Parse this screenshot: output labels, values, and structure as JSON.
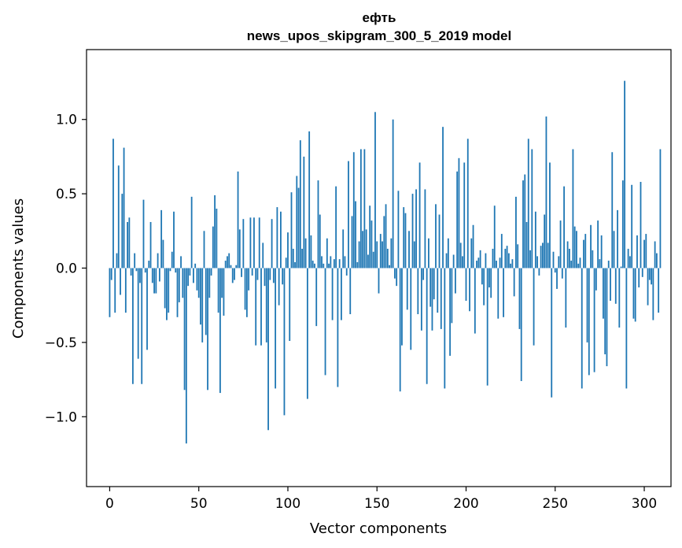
{
  "chart_data": {
    "type": "bar",
    "title_line1": "ефть",
    "title_line2": "news_upos_skipgram_300_5_2019 model",
    "xlabel": "Vector components",
    "ylabel": "Components values",
    "xlim": [
      -13,
      315
    ],
    "ylim": [
      -1.47,
      1.47
    ],
    "xticks": [
      0,
      50,
      100,
      150,
      200,
      250,
      300
    ],
    "yticks": [
      -1.0,
      -0.5,
      0.0,
      0.5,
      1.0
    ],
    "xtick_labels": [
      "0",
      "50",
      "100",
      "150",
      "200",
      "250",
      "300"
    ],
    "ytick_labels": [
      "−1.0",
      "−0.5",
      "0.0",
      "0.5",
      "1.0"
    ],
    "bar_color": "#1f77b4",
    "values": [
      -0.33,
      -0.08,
      0.87,
      -0.3,
      0.1,
      0.69,
      -0.18,
      0.5,
      0.81,
      -0.3,
      0.31,
      0.34,
      -0.05,
      -0.78,
      0.1,
      -0.02,
      -0.61,
      -0.1,
      -0.78,
      0.46,
      -0.03,
      -0.55,
      0.05,
      0.31,
      -0.1,
      -0.17,
      -0.17,
      0.1,
      -0.09,
      0.39,
      0.19,
      -0.27,
      -0.35,
      -0.3,
      -0.02,
      0.11,
      0.38,
      -0.03,
      -0.33,
      -0.23,
      0.08,
      -0.2,
      -0.82,
      -1.18,
      -0.12,
      -0.05,
      0.48,
      -0.1,
      0.03,
      -0.15,
      -0.2,
      -0.38,
      -0.5,
      0.25,
      -0.45,
      -0.82,
      -0.2,
      -0.05,
      0.28,
      0.49,
      0.4,
      -0.3,
      -0.84,
      -0.2,
      -0.32,
      0.05,
      0.08,
      0.1,
      0.02,
      -0.1,
      -0.08,
      0.02,
      0.65,
      0.26,
      -0.06,
      0.33,
      -0.28,
      -0.33,
      -0.15,
      0.34,
      -0.05,
      0.34,
      -0.52,
      -0.08,
      0.34,
      -0.52,
      0.17,
      -0.12,
      -0.5,
      -1.09,
      -0.08,
      0.33,
      -0.1,
      -0.81,
      0.41,
      -0.25,
      0.38,
      -0.11,
      -0.99,
      0.07,
      0.24,
      -0.49,
      0.51,
      0.13,
      0.04,
      0.62,
      0.54,
      0.86,
      0.13,
      0.75,
      0.2,
      -0.88,
      0.92,
      0.22,
      0.05,
      0.03,
      -0.39,
      0.59,
      0.36,
      0.08,
      0.03,
      -0.72,
      0.2,
      0.03,
      0.08,
      -0.35,
      0.06,
      0.55,
      -0.8,
      0.06,
      -0.35,
      0.26,
      0.08,
      -0.05,
      0.72,
      -0.31,
      0.35,
      0.78,
      0.45,
      0.04,
      0.18,
      0.8,
      0.25,
      0.8,
      0.26,
      0.09,
      0.42,
      0.32,
      0.11,
      1.05,
      0.18,
      -0.17,
      0.23,
      0.18,
      0.35,
      0.43,
      0.13,
      0.02,
      0.2,
      1.0,
      -0.07,
      -0.12,
      0.52,
      -0.83,
      -0.52,
      0.41,
      0.37,
      -0.28,
      0.25,
      -0.55,
      0.5,
      0.18,
      0.53,
      -0.31,
      0.71,
      -0.42,
      -0.08,
      0.53,
      -0.78,
      0.2,
      -0.26,
      -0.42,
      -0.21,
      0.43,
      -0.3,
      0.36,
      -0.41,
      0.95,
      -0.81,
      0.1,
      0.2,
      -0.59,
      -0.37,
      0.09,
      -0.17,
      0.65,
      0.74,
      0.17,
      0.08,
      0.71,
      -0.22,
      0.87,
      -0.29,
      0.2,
      0.29,
      -0.44,
      0.05,
      0.07,
      0.12,
      -0.11,
      -0.25,
      0.1,
      -0.79,
      -0.13,
      -0.2,
      0.13,
      0.42,
      0.05,
      -0.34,
      0.07,
      0.23,
      -0.33,
      0.13,
      0.15,
      0.1,
      0.03,
      0.06,
      -0.19,
      0.48,
      0.16,
      -0.41,
      -0.76,
      0.59,
      0.63,
      0.31,
      0.87,
      0.12,
      0.8,
      -0.52,
      0.38,
      0.08,
      -0.05,
      0.15,
      0.17,
      0.36,
      1.02,
      0.17,
      0.71,
      -0.87,
      0.11,
      -0.03,
      -0.14,
      0.08,
      0.32,
      -0.07,
      0.55,
      -0.4,
      0.18,
      0.13,
      0.05,
      0.8,
      0.28,
      0.25,
      0.03,
      0.07,
      -0.81,
      0.19,
      0.23,
      -0.5,
      -0.72,
      0.29,
      0.12,
      -0.7,
      -0.15,
      0.32,
      0.06,
      0.22,
      -0.34,
      -0.58,
      -0.66,
      0.05,
      -0.22,
      0.78,
      0.25,
      -0.24,
      0.39,
      -0.4,
      0.01,
      0.59,
      1.26,
      -0.81,
      0.13,
      0.08,
      0.56,
      -0.34,
      -0.36,
      0.22,
      -0.13,
      0.58,
      -0.06,
      0.19,
      0.23,
      -0.25,
      -0.08,
      -0.11,
      -0.35,
      0.18,
      0.1,
      -0.3,
      0.8
    ]
  }
}
